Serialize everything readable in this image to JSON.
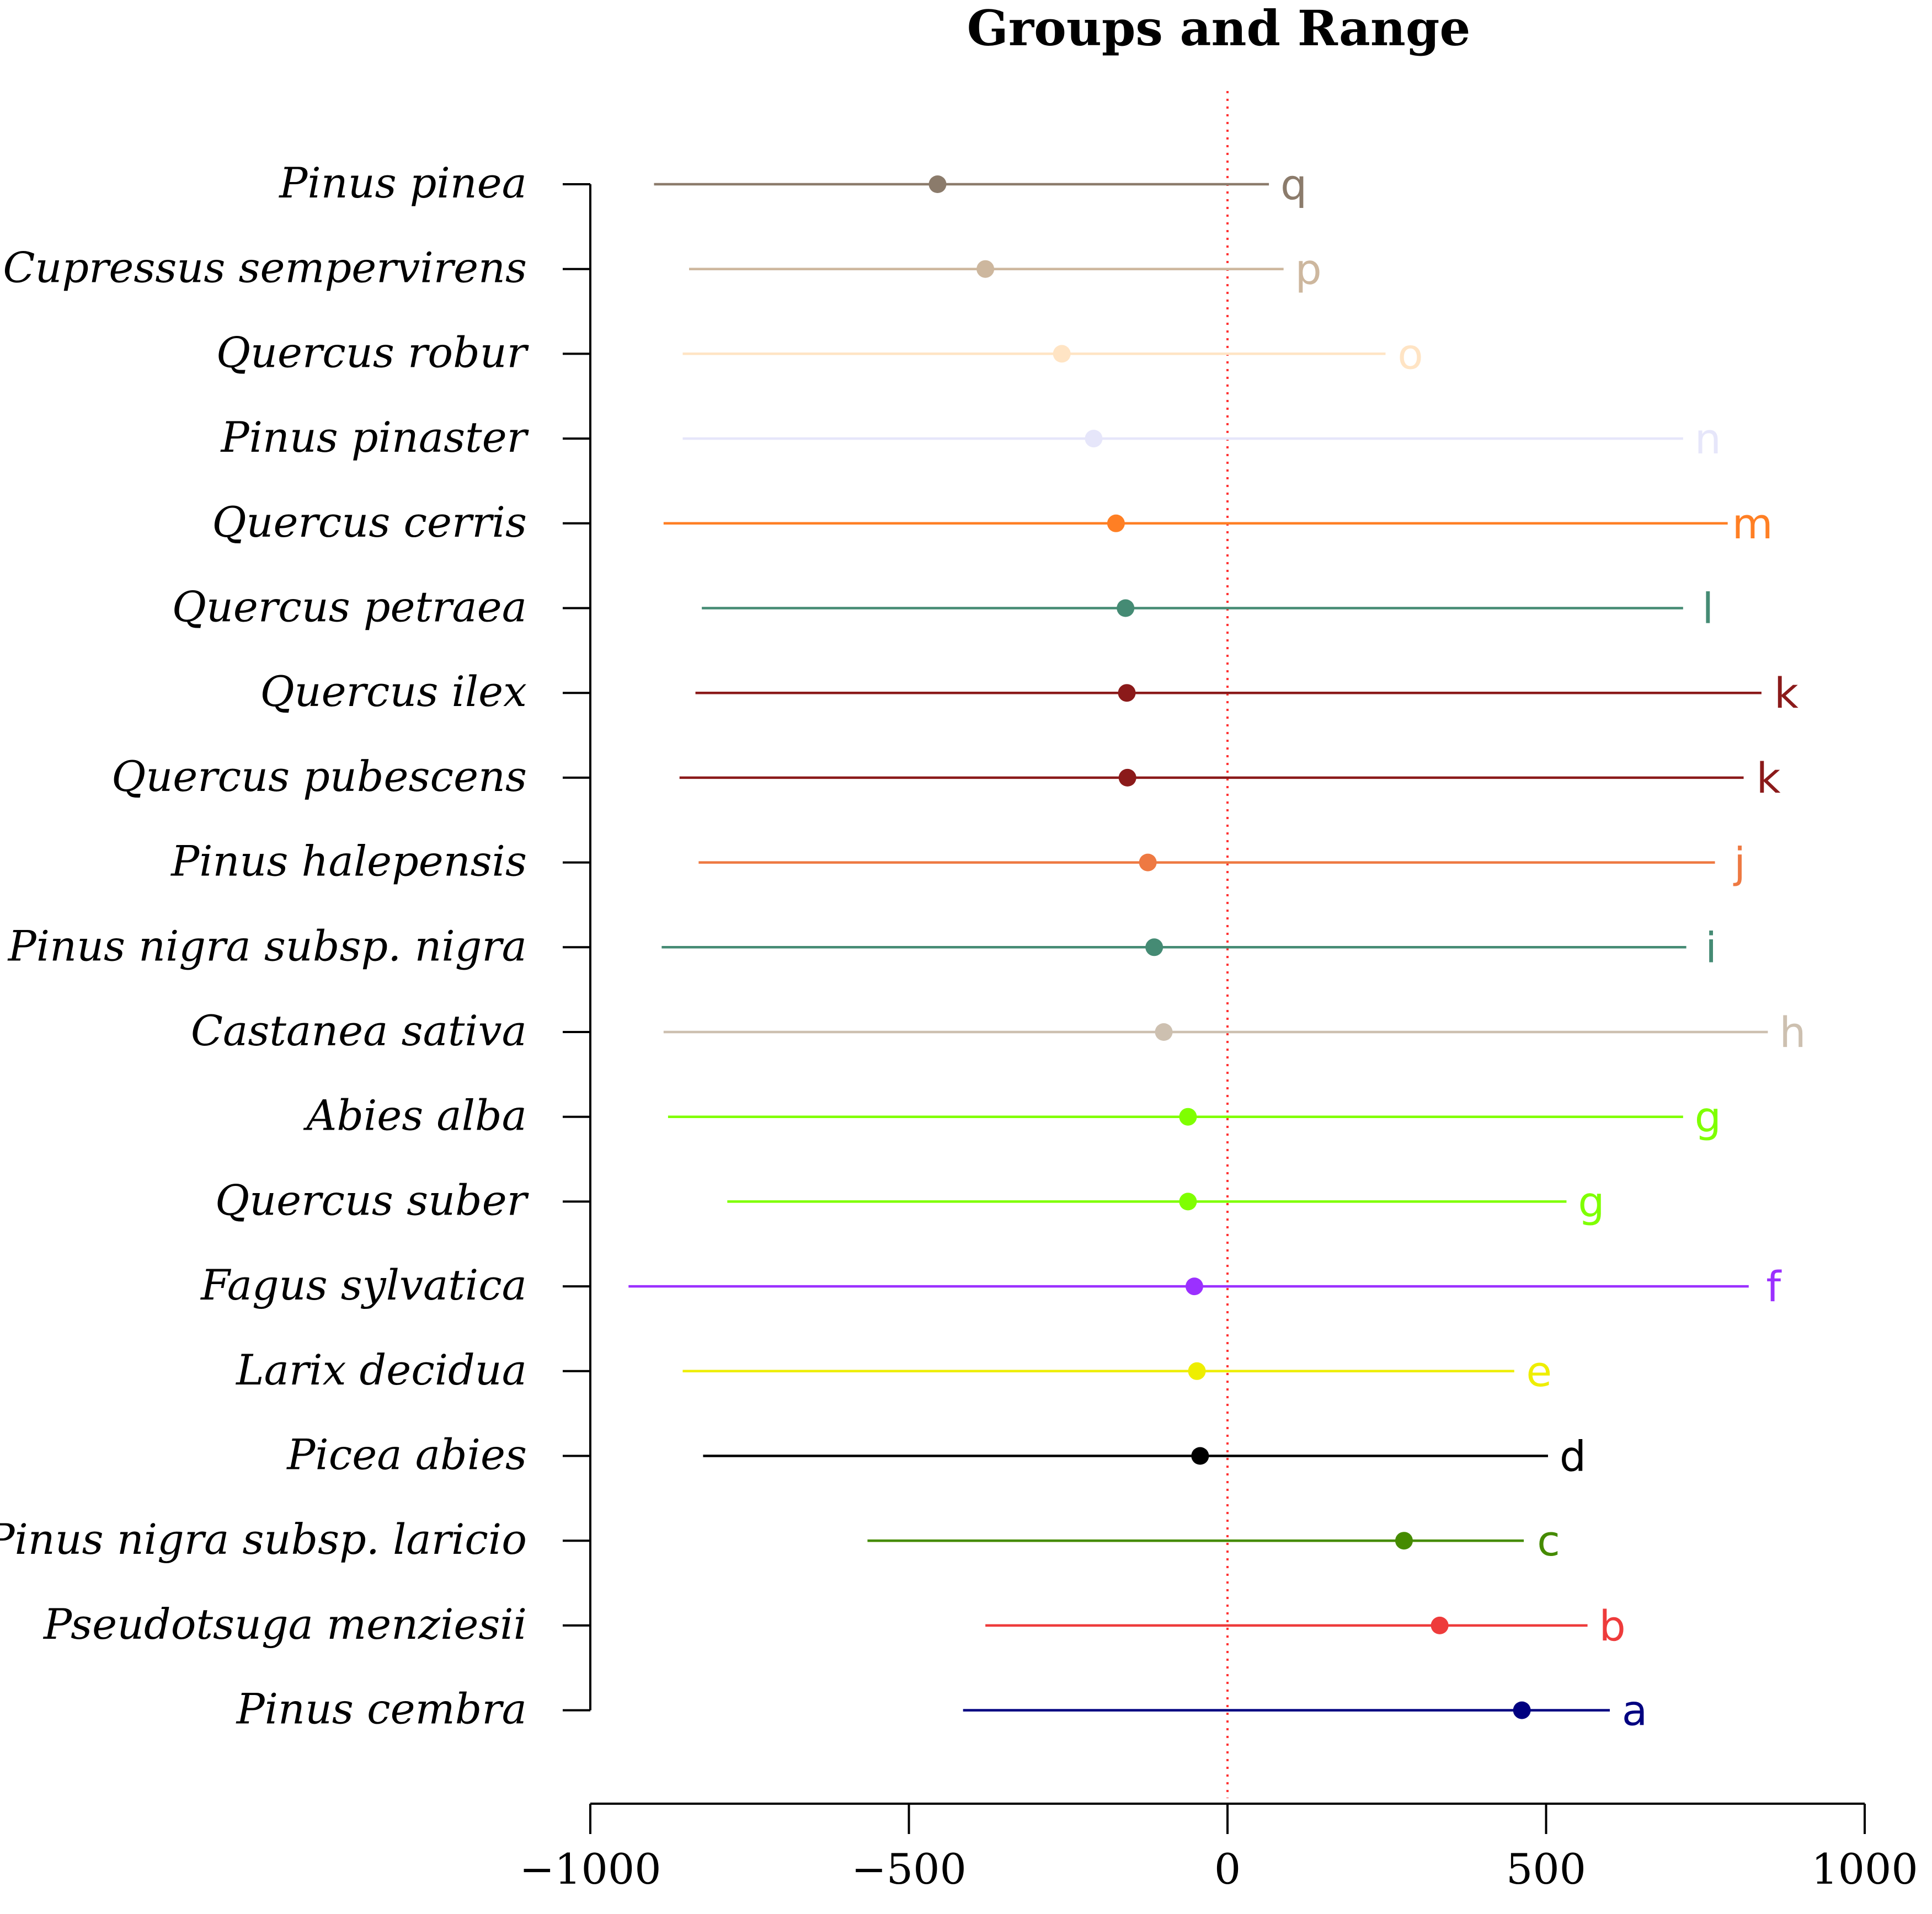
{
  "chart_data": {
    "type": "dot-range",
    "title": "Groups and Range",
    "xlabel": "",
    "ylabel": "",
    "xlim": [
      -1000,
      1000
    ],
    "x_ticks": [
      -1000,
      -500,
      0,
      500,
      1000
    ],
    "x_tick_labels": [
      "−1000",
      "−500",
      "0",
      "500",
      "1000"
    ],
    "reference_line": {
      "x": 0,
      "color": "#ff3333",
      "style": "dotted"
    },
    "series": [
      {
        "name": "Pinus pinea",
        "min": -900,
        "max": 65,
        "center": -455,
        "group": "q",
        "color": "#8b7b6b"
      },
      {
        "name": "Cupressus sempervirens",
        "min": -845,
        "max": 88,
        "center": -380,
        "group": "p",
        "color": "#cdb79e"
      },
      {
        "name": "Quercus robur",
        "min": -855,
        "max": 248,
        "center": -260,
        "group": "o",
        "color": "#ffe4c4"
      },
      {
        "name": "Pinus pinaster",
        "min": -855,
        "max": 715,
        "center": -210,
        "group": "n",
        "color": "#e6e6fa"
      },
      {
        "name": "Quercus cerris",
        "min": -885,
        "max": 785,
        "center": -175,
        "group": "m",
        "color": "#ff7f24"
      },
      {
        "name": "Quercus petraea",
        "min": -825,
        "max": 715,
        "center": -160,
        "group": "l",
        "color": "#458b74"
      },
      {
        "name": "Quercus ilex",
        "min": -835,
        "max": 838,
        "center": -158,
        "group": "k",
        "color": "#8b1a1a"
      },
      {
        "name": "Quercus pubescens",
        "min": -860,
        "max": 810,
        "center": -157,
        "group": "k",
        "color": "#8b1a1a"
      },
      {
        "name": "Pinus halepensis",
        "min": -830,
        "max": 765,
        "center": -125,
        "group": "j",
        "color": "#ee7942"
      },
      {
        "name": "Pinus nigra subsp. nigra",
        "min": -888,
        "max": 720,
        "center": -115,
        "group": "i",
        "color": "#458b74"
      },
      {
        "name": "Castanea sativa",
        "min": -885,
        "max": 848,
        "center": -100,
        "group": "h",
        "color": "#cdc0b0"
      },
      {
        "name": "Abies alba",
        "min": -878,
        "max": 715,
        "center": -62,
        "group": "g",
        "color": "#7fff00"
      },
      {
        "name": "Quercus suber",
        "min": -785,
        "max": 532,
        "center": -62,
        "group": "g",
        "color": "#7fff00"
      },
      {
        "name": "Fagus sylvatica",
        "min": -940,
        "max": 818,
        "center": -52,
        "group": "f",
        "color": "#9b30ff"
      },
      {
        "name": "Larix decidua",
        "min": -855,
        "max": 450,
        "center": -48,
        "group": "e",
        "color": "#eeee00"
      },
      {
        "name": "Picea abies",
        "min": -823,
        "max": 503,
        "center": -43,
        "group": "d",
        "color": "#000000"
      },
      {
        "name": "Pinus nigra subsp. laricio",
        "min": -565,
        "max": 465,
        "center": 277,
        "group": "c",
        "color": "#458b00"
      },
      {
        "name": "Pseudotsuga menziesii",
        "min": -380,
        "max": 565,
        "center": 333,
        "group": "b",
        "color": "#ee3b3b"
      },
      {
        "name": "Pinus cembra",
        "min": -415,
        "max": 600,
        "center": 462,
        "group": "a",
        "color": "#000080"
      }
    ]
  }
}
